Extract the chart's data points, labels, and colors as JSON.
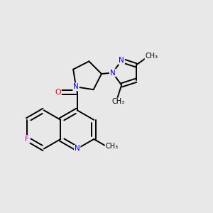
{
  "bg_color": "#e8e8e8",
  "bond_color": "#000000",
  "atom_colors": {
    "N": "#0000ff",
    "O": "#ff0000",
    "F": "#cc00cc",
    "C": "#000000"
  },
  "figsize": [
    3.0,
    3.0
  ],
  "dpi": 100,
  "xlim": [
    0,
    10
  ],
  "ylim": [
    0,
    10
  ]
}
